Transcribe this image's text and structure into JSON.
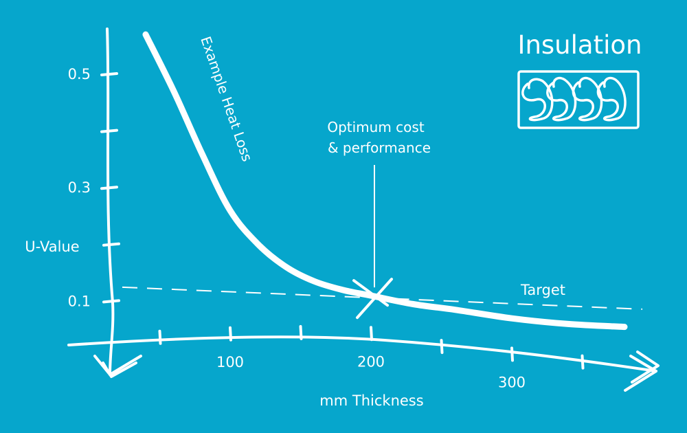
{
  "chart_data": {
    "type": "line",
    "title": "Insulation",
    "xlabel": "mm Thickness",
    "ylabel": "U-Value",
    "x_ticks": [
      {
        "value": 50,
        "label": ""
      },
      {
        "value": 100,
        "label": "100"
      },
      {
        "value": 150,
        "label": ""
      },
      {
        "value": 200,
        "label": "200"
      },
      {
        "value": 250,
        "label": ""
      },
      {
        "value": 300,
        "label": "300"
      },
      {
        "value": 350,
        "label": ""
      }
    ],
    "y_ticks": [
      {
        "value": 0.1,
        "label": "0.1"
      },
      {
        "value": 0.2,
        "label": ""
      },
      {
        "value": 0.3,
        "label": "0.3"
      },
      {
        "value": 0.4,
        "label": ""
      },
      {
        "value": 0.5,
        "label": "0.5"
      }
    ],
    "series": [
      {
        "name": "Example Heat Loss",
        "x": [
          40,
          60,
          80,
          100,
          120,
          140,
          160,
          180,
          200,
          230,
          260,
          300,
          340,
          380
        ],
        "y": [
          0.57,
          0.47,
          0.36,
          0.26,
          0.2,
          0.16,
          0.135,
          0.12,
          0.11,
          0.095,
          0.085,
          0.07,
          0.06,
          0.055
        ]
      }
    ],
    "target": {
      "label": "Target",
      "value": 0.12
    },
    "annotation": {
      "text": [
        "Optimum cost",
        "& performance"
      ],
      "x": 200,
      "y": 0.11
    },
    "grid": false,
    "legend": "none"
  }
}
